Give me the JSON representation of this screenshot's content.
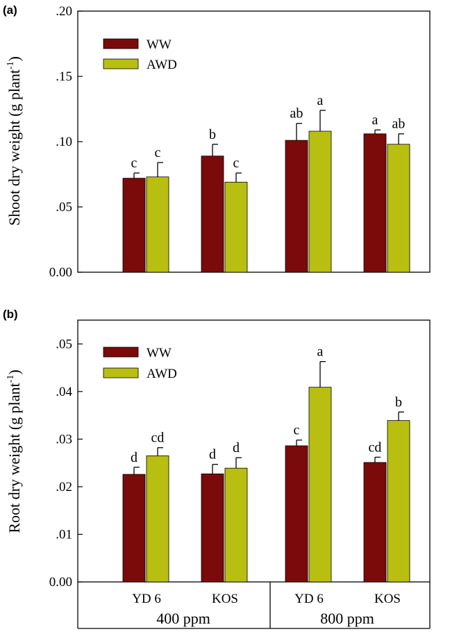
{
  "colors": {
    "ww": "#7b0a0a",
    "awd": "#b8bf10",
    "axis": "#000000"
  },
  "chart_data": [
    {
      "panel": "(a)",
      "type": "bar",
      "ylabel": "Shoot dry weight (g plant",
      "ylabel_sup": "-1",
      "ylabel_close": ")",
      "ylim": [
        0,
        0.2
      ],
      "yticks": [
        {
          "value": 0.0,
          "label": "0.00"
        },
        {
          "value": 0.05,
          "label": ".05"
        },
        {
          "value": 0.1,
          "label": ".10"
        },
        {
          "value": 0.15,
          "label": ".15"
        },
        {
          "value": 0.2,
          "label": ".20"
        }
      ],
      "categories": [
        "YD 6",
        "KOS",
        "YD 6",
        "KOS"
      ],
      "series": [
        {
          "name": "WW",
          "color_key": "ww",
          "values": [
            0.072,
            0.089,
            0.101,
            0.106
          ],
          "errors": [
            0.004,
            0.009,
            0.013,
            0.003
          ],
          "sig": [
            "c",
            "b",
            "ab",
            "a"
          ]
        },
        {
          "name": "AWD",
          "color_key": "awd",
          "values": [
            0.073,
            0.069,
            0.108,
            0.098
          ],
          "errors": [
            0.011,
            0.007,
            0.016,
            0.008
          ],
          "sig": [
            "c",
            "c",
            "a",
            "ab"
          ]
        }
      ],
      "legend": [
        "WW",
        "AWD"
      ]
    },
    {
      "panel": "(b)",
      "type": "bar",
      "ylabel": "Root dry weight (g plant",
      "ylabel_sup": "-1",
      "ylabel_close": ")",
      "ylim": [
        0,
        0.055
      ],
      "yticks": [
        {
          "value": 0.0,
          "label": "0.00"
        },
        {
          "value": 0.01,
          "label": ".01"
        },
        {
          "value": 0.02,
          "label": ".02"
        },
        {
          "value": 0.03,
          "label": ".03"
        },
        {
          "value": 0.04,
          "label": ".04"
        },
        {
          "value": 0.05,
          "label": ".05"
        }
      ],
      "categories": [
        "YD 6",
        "KOS",
        "YD 6",
        "KOS"
      ],
      "groups": [
        "400 ppm",
        "800 ppm"
      ],
      "series": [
        {
          "name": "WW",
          "color_key": "ww",
          "values": [
            0.0226,
            0.0227,
            0.0286,
            0.0251
          ],
          "errors": [
            0.0015,
            0.002,
            0.0012,
            0.0011
          ],
          "sig": [
            "d",
            "d",
            "c",
            "cd"
          ]
        },
        {
          "name": "AWD",
          "color_key": "awd",
          "values": [
            0.0265,
            0.0239,
            0.0409,
            0.0339
          ],
          "errors": [
            0.0017,
            0.0022,
            0.0054,
            0.0018
          ],
          "sig": [
            "cd",
            "d",
            "a",
            "b"
          ]
        }
      ],
      "legend": [
        "WW",
        "AWD"
      ]
    }
  ]
}
